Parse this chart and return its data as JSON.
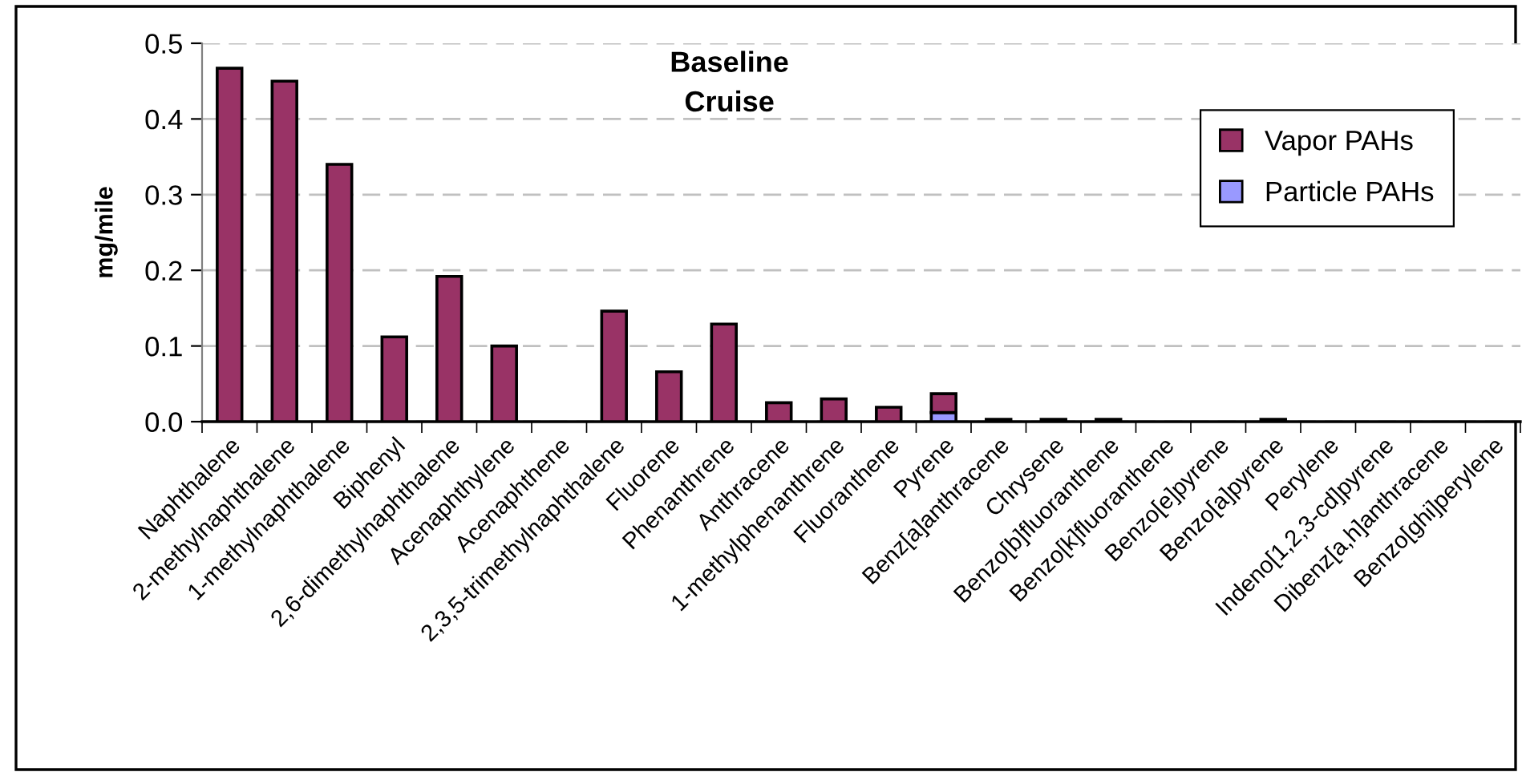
{
  "chart_data": {
    "type": "bar",
    "title": "Baseline\nCruise",
    "ylabel": "mg/mile",
    "stacked": true,
    "categories": [
      "Naphthalene",
      "2-methylnaphthalene",
      "1-methylnaphthalene",
      "Biphenyl",
      "2,6-dimethylnaphthalene",
      "Acenaphthylene",
      "Acenaphthene",
      "2,3,5-trimethylnaphthalene",
      "Fluorene",
      "Phenanthrene",
      "Anthracene",
      "1-methylphenanthrene",
      "Fluoranthene",
      "Pyrene",
      "Benz[a]anthracene",
      "Chrysene",
      "Benzo[b]fluoranthene",
      "Benzo[k]fluoranthene",
      "Benzo[e]pyrene",
      "Benzo[a]pyrene",
      "Perylene",
      "Indeno[1,2,3-cd]pyrene",
      "Dibenz[a,h]anthracene",
      "Benzo[ghi]perylene"
    ],
    "series": [
      {
        "name": "Particle PAHs",
        "color": "#9999ff",
        "values": [
          0,
          0,
          0,
          0,
          0,
          0,
          0,
          0,
          0,
          0,
          0,
          0,
          null,
          0.012,
          0,
          0,
          0,
          0,
          0,
          0,
          0,
          0,
          0,
          0
        ]
      },
      {
        "name": "Vapor PAHs",
        "color": "#993366",
        "values": [
          0.467,
          0.45,
          0.34,
          0.112,
          0.192,
          0.1,
          0,
          0.146,
          0.066,
          0.129,
          0.025,
          0.03,
          0.019,
          0.025,
          0.003,
          0.003,
          0.003,
          0,
          0,
          0.003,
          0,
          0,
          0,
          0
        ]
      }
    ],
    "ylim": [
      0,
      0.5
    ],
    "yticks": [
      {
        "value": 0,
        "label": "0.0"
      },
      0.1,
      0.2,
      0.3,
      0.4,
      0.5
    ],
    "grid": "y",
    "legend": "top right"
  }
}
